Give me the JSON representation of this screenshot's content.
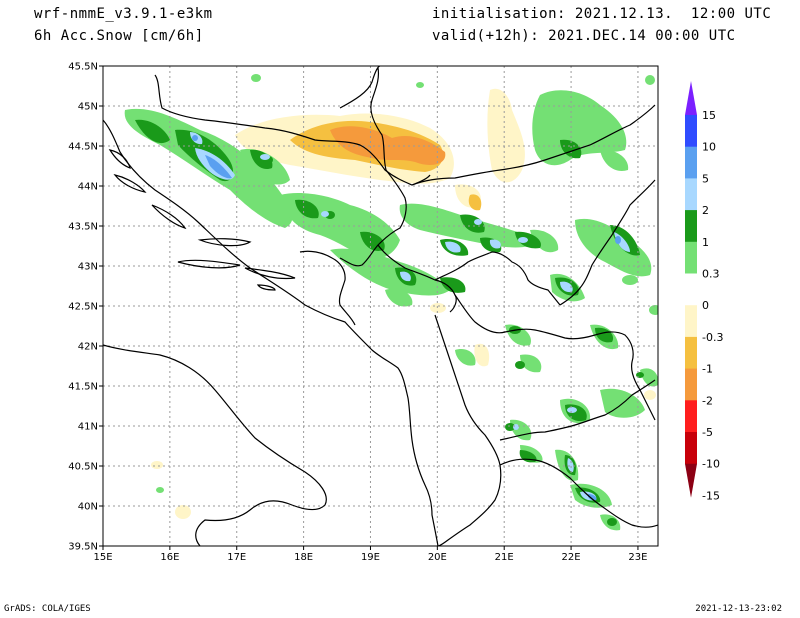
{
  "header": {
    "model": "wrf-nmmE_v3.9.1-e3km",
    "variable": "6h Acc.Snow [cm/6h]",
    "initialisation": "initialisation: 2021.12.13.  12:00 UTC",
    "valid": "valid(+12h): 2021.DEC.14 00:00 UTC"
  },
  "map": {
    "lat_labels": [
      "45.5N",
      "45N",
      "44.5N",
      "44N",
      "43.5N",
      "43N",
      "42.5N",
      "42N",
      "41.5N",
      "41N",
      "40.5N",
      "40N",
      "39.5N"
    ],
    "lon_labels": [
      "15E",
      "16E",
      "17E",
      "18E",
      "19E",
      "20E",
      "21E",
      "22E",
      "23E"
    ],
    "lat_range": [
      39.5,
      45.5
    ],
    "lon_range": [
      15,
      23.3
    ],
    "grid": true
  },
  "colorbar": {
    "levels": [
      "15",
      "10",
      "5",
      "2",
      "1",
      "0.3",
      "0",
      "-0.3",
      "-1",
      "-2",
      "-5",
      "-10",
      "-15"
    ],
    "colors": [
      "#7b20ff",
      "#2f4cff",
      "#5aa0f0",
      "#a8d8ff",
      "#1a9a1a",
      "#74e074",
      "#ffffff",
      "#fff5c8",
      "#f5c040",
      "#f59a3c",
      "#ff1e1e",
      "#c8000a",
      "#8c0014"
    ]
  },
  "footer": {
    "left": "GrADS: COLA/IGES",
    "right": "2021-12-13-23:02"
  }
}
